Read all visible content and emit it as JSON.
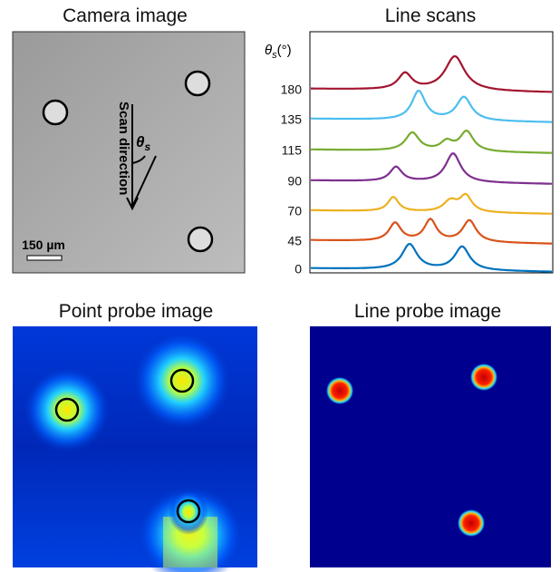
{
  "camera": {
    "title": "Camera image",
    "scan_direction": "Scan direction",
    "angle": {
      "symbol": "θ",
      "subscript": "s"
    },
    "scale_bar": "150 µm"
  },
  "line_scans": {
    "title": "Line scans",
    "axis_label": {
      "symbol": "θ",
      "subscript": "s",
      "unit": "(°)"
    },
    "labels": [
      "180",
      "135",
      "115",
      "90",
      "70",
      "45",
      "0"
    ]
  },
  "point_probe": {
    "title": "Point probe image"
  },
  "line_probe": {
    "title": "Line probe image"
  }
}
